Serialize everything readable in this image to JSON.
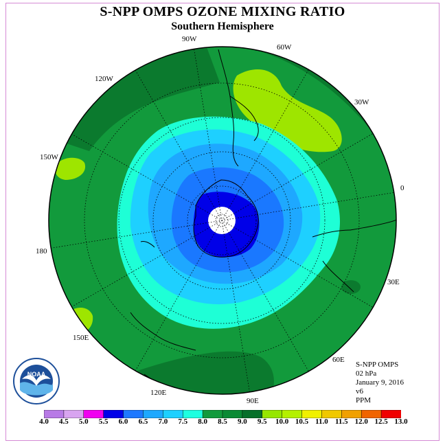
{
  "title": "S-NPP OMPS OZONE MIXING RATIO",
  "subtitle": "Southern Hemisphere",
  "longitude_labels": {
    "lon_90w": "90W",
    "lon_60w": "60W",
    "lon_30w": "30W",
    "lon_120w": "120W",
    "lon_150w": "150W",
    "lon_0": "0",
    "lon_180": "180",
    "lon_30e": "30E",
    "lon_150e": "150E",
    "lon_60e": "60E",
    "lon_120e": "120E",
    "lon_90e": "90E"
  },
  "info": {
    "instrument": "S-NPP OMPS",
    "level": "02 hPa",
    "date": "January 9, 2016",
    "version": "v6",
    "units": "PPM"
  },
  "logo": {
    "text": "NOAA",
    "ring_text": "NATIONAL OCEANIC AND ATMOSPHERIC ADMINISTRATION · U.S. DEPARTMENT OF COMMERCE"
  },
  "colorbar": {
    "ticks": [
      "4.0",
      "4.5",
      "5.0",
      "5.5",
      "6.0",
      "6.5",
      "7.0",
      "7.5",
      "8.0",
      "8.5",
      "9.0",
      "9.5",
      "10.0",
      "10.5",
      "11.0",
      "11.5",
      "12.0",
      "12.5",
      "13.0"
    ],
    "colors": [
      "#b87ae6",
      "#d8a4f0",
      "#f000f0",
      "#0000e8",
      "#1e78ff",
      "#1ea8ff",
      "#1ed0ff",
      "#1effe0",
      "#129a3c",
      "#0a8a34",
      "#06702a",
      "#96e600",
      "#b4f000",
      "#f0f000",
      "#f0c800",
      "#f0a000",
      "#f06400",
      "#f00000",
      "#8c5a3c"
    ]
  },
  "chart_data": {
    "type": "polar-stereographic-contour-map",
    "hemisphere": "Southern",
    "center_value_shown": "white (no data) near pole",
    "levels_ppm": [
      4.0,
      4.5,
      5.0,
      5.5,
      6.0,
      6.5,
      7.0,
      7.5,
      8.0,
      8.5,
      9.0,
      9.5,
      10.0,
      10.5,
      11.0,
      11.5,
      12.0,
      12.5,
      13.0
    ],
    "concentric_bands_from_pole_ppm": [
      5.5,
      6.0,
      6.5,
      7.0,
      7.5,
      8.0,
      8.5,
      9.0
    ],
    "high_patches_ppm": [
      9.0,
      9.5
    ]
  }
}
